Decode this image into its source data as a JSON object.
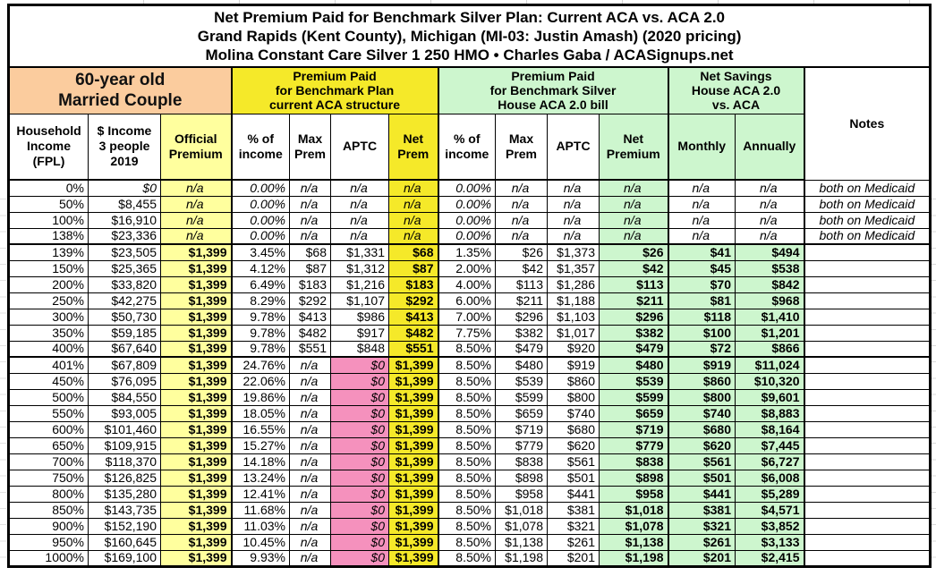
{
  "title": {
    "line1": "Net Premium Paid for Benchmark Silver Plan: Current ACA vs. ACA 2.0",
    "line2": "Grand Rapids (Kent County), Michigan (MI-03: Justin Amash) (2020 pricing)",
    "line3": "Molina Constant Care Silver 1 250 HMO • Charles Gaba / ACASignups.net"
  },
  "header": {
    "subject_block": "60-year old\nMarried Couple",
    "group_current_aca": "Premium Paid\nfor Benchmark Plan\ncurrent ACA structure",
    "group_aca20": "Premium Paid\nfor Benchmark Silver\nHouse ACA 2.0 bill",
    "group_savings": "Net Savings\nHouse ACA 2.0\nvs. ACA",
    "notes_label": "Notes",
    "col_labels": [
      "Household\nIncome\n(FPL)",
      "$ Income\n3 people\n2019",
      "Official\nPremium",
      "% of\nincome",
      "Max\nPrem",
      "APTC",
      "Net\nPrem",
      "% of\nincome",
      "Max\nPrem",
      "APTC",
      "Net\nPremium",
      "Monthly",
      "Annually"
    ]
  },
  "colors": {
    "peach_header": "#FBCC9E",
    "bright_yellow": "#F5E929",
    "light_yellow": "#FFFF9E",
    "light_green": "#CDF6CE",
    "pink": "#F591BD",
    "border": "#000000"
  },
  "chart_data": {
    "type": "table",
    "column_groups": [
      {
        "label": "60-year old Married Couple",
        "columns": [
          0,
          1,
          2
        ]
      },
      {
        "label": "Premium Paid for Benchmark Plan current ACA structure",
        "columns": [
          3,
          4,
          5,
          6
        ]
      },
      {
        "label": "Premium Paid for Benchmark Silver House ACA 2.0 bill",
        "columns": [
          7,
          8,
          9,
          10
        ]
      },
      {
        "label": "Net Savings House ACA 2.0 vs. ACA",
        "columns": [
          11,
          12
        ]
      },
      {
        "label": "Notes",
        "columns": [
          13
        ]
      }
    ],
    "columns": [
      "Household Income (FPL)",
      "$ Income 3 people 2019",
      "Official Premium",
      "ACA % of income",
      "ACA Max Prem",
      "ACA APTC",
      "ACA Net Prem",
      "ACA 2.0 % of income",
      "ACA 2.0 Max Prem",
      "ACA 2.0 APTC",
      "ACA 2.0 Net Premium",
      "Savings Monthly",
      "Savings Annually",
      "Notes"
    ],
    "rows": [
      [
        "0%",
        "$0",
        "n/a",
        "0.00%",
        "n/a",
        "n/a",
        "n/a",
        "0.00%",
        "n/a",
        "n/a",
        "n/a",
        "n/a",
        "n/a",
        "both on Medicaid"
      ],
      [
        "50%",
        "$8,455",
        "n/a",
        "0.00%",
        "n/a",
        "n/a",
        "n/a",
        "0.00%",
        "n/a",
        "n/a",
        "n/a",
        "n/a",
        "n/a",
        "both on Medicaid"
      ],
      [
        "100%",
        "$16,910",
        "n/a",
        "0.00%",
        "n/a",
        "n/a",
        "n/a",
        "0.00%",
        "n/a",
        "n/a",
        "n/a",
        "n/a",
        "n/a",
        "both on Medicaid"
      ],
      [
        "138%",
        "$23,336",
        "n/a",
        "0.00%",
        "n/a",
        "n/a",
        "n/a",
        "0.00%",
        "n/a",
        "n/a",
        "n/a",
        "n/a",
        "n/a",
        "both on Medicaid"
      ],
      [
        "139%",
        "$23,505",
        "$1,399",
        "3.45%",
        "$68",
        "$1,331",
        "$68",
        "1.35%",
        "$26",
        "$1,373",
        "$26",
        "$41",
        "$494",
        ""
      ],
      [
        "150%",
        "$25,365",
        "$1,399",
        "4.12%",
        "$87",
        "$1,312",
        "$87",
        "2.00%",
        "$42",
        "$1,357",
        "$42",
        "$45",
        "$538",
        ""
      ],
      [
        "200%",
        "$33,820",
        "$1,399",
        "6.49%",
        "$183",
        "$1,216",
        "$183",
        "4.00%",
        "$113",
        "$1,286",
        "$113",
        "$70",
        "$842",
        ""
      ],
      [
        "250%",
        "$42,275",
        "$1,399",
        "8.29%",
        "$292",
        "$1,107",
        "$292",
        "6.00%",
        "$211",
        "$1,188",
        "$211",
        "$81",
        "$968",
        ""
      ],
      [
        "300%",
        "$50,730",
        "$1,399",
        "9.78%",
        "$413",
        "$986",
        "$413",
        "7.00%",
        "$296",
        "$1,103",
        "$296",
        "$118",
        "$1,410",
        ""
      ],
      [
        "350%",
        "$59,185",
        "$1,399",
        "9.78%",
        "$482",
        "$917",
        "$482",
        "7.75%",
        "$382",
        "$1,017",
        "$382",
        "$100",
        "$1,201",
        ""
      ],
      [
        "400%",
        "$67,640",
        "$1,399",
        "9.78%",
        "$551",
        "$848",
        "$551",
        "8.50%",
        "$479",
        "$920",
        "$479",
        "$72",
        "$866",
        ""
      ],
      [
        "401%",
        "$67,809",
        "$1,399",
        "24.76%",
        "n/a",
        "$0",
        "$1,399",
        "8.50%",
        "$480",
        "$919",
        "$480",
        "$919",
        "$11,024",
        ""
      ],
      [
        "450%",
        "$76,095",
        "$1,399",
        "22.06%",
        "n/a",
        "$0",
        "$1,399",
        "8.50%",
        "$539",
        "$860",
        "$539",
        "$860",
        "$10,320",
        ""
      ],
      [
        "500%",
        "$84,550",
        "$1,399",
        "19.86%",
        "n/a",
        "$0",
        "$1,399",
        "8.50%",
        "$599",
        "$800",
        "$599",
        "$800",
        "$9,601",
        ""
      ],
      [
        "550%",
        "$93,005",
        "$1,399",
        "18.05%",
        "n/a",
        "$0",
        "$1,399",
        "8.50%",
        "$659",
        "$740",
        "$659",
        "$740",
        "$8,883",
        ""
      ],
      [
        "600%",
        "$101,460",
        "$1,399",
        "16.55%",
        "n/a",
        "$0",
        "$1,399",
        "8.50%",
        "$719",
        "$680",
        "$719",
        "$680",
        "$8,164",
        ""
      ],
      [
        "650%",
        "$109,915",
        "$1,399",
        "15.27%",
        "n/a",
        "$0",
        "$1,399",
        "8.50%",
        "$779",
        "$620",
        "$779",
        "$620",
        "$7,445",
        ""
      ],
      [
        "700%",
        "$118,370",
        "$1,399",
        "14.18%",
        "n/a",
        "$0",
        "$1,399",
        "8.50%",
        "$838",
        "$561",
        "$838",
        "$561",
        "$6,727",
        ""
      ],
      [
        "750%",
        "$126,825",
        "$1,399",
        "13.24%",
        "n/a",
        "$0",
        "$1,399",
        "8.50%",
        "$898",
        "$501",
        "$898",
        "$501",
        "$6,008",
        ""
      ],
      [
        "800%",
        "$135,280",
        "$1,399",
        "12.41%",
        "n/a",
        "$0",
        "$1,399",
        "8.50%",
        "$958",
        "$441",
        "$958",
        "$441",
        "$5,289",
        ""
      ],
      [
        "850%",
        "$143,735",
        "$1,399",
        "11.68%",
        "n/a",
        "$0",
        "$1,399",
        "8.50%",
        "$1,018",
        "$381",
        "$1,018",
        "$381",
        "$4,571",
        ""
      ],
      [
        "900%",
        "$152,190",
        "$1,399",
        "11.03%",
        "n/a",
        "$0",
        "$1,399",
        "8.50%",
        "$1,078",
        "$321",
        "$1,078",
        "$321",
        "$3,852",
        ""
      ],
      [
        "950%",
        "$160,645",
        "$1,399",
        "10.45%",
        "n/a",
        "$0",
        "$1,399",
        "8.50%",
        "$1,138",
        "$261",
        "$1,138",
        "$261",
        "$3,133",
        ""
      ],
      [
        "1000%",
        "$169,100",
        "$1,399",
        "9.93%",
        "n/a",
        "$0",
        "$1,399",
        "8.50%",
        "$1,198",
        "$201",
        "$1,198",
        "$201",
        "$2,415",
        ""
      ]
    ]
  }
}
